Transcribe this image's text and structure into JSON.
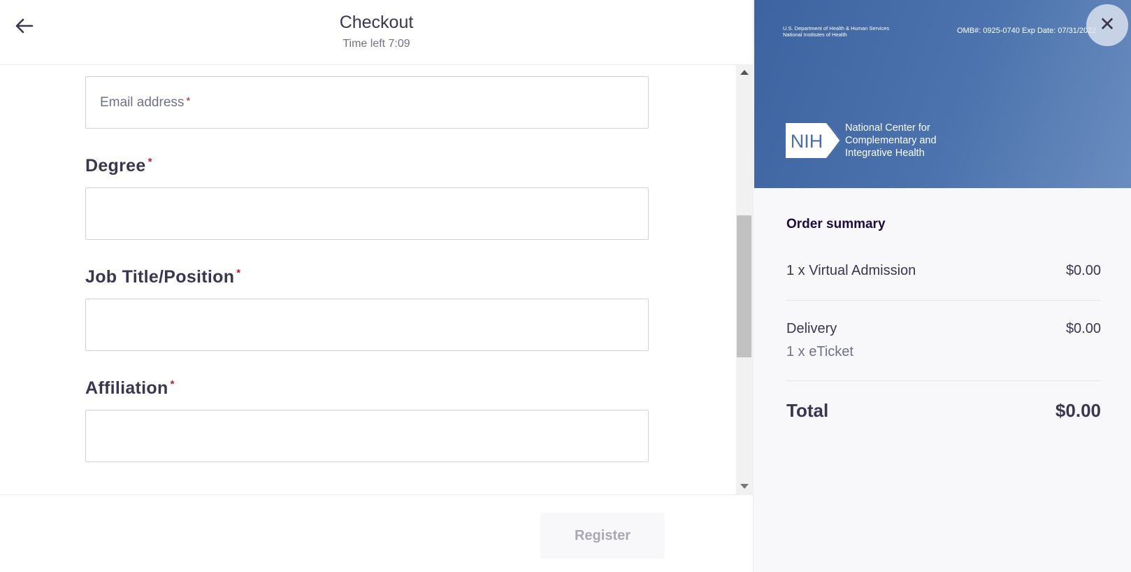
{
  "header": {
    "title": "Checkout",
    "timer": "Time left 7:09"
  },
  "form": {
    "email_placeholder": "Email address",
    "required_mark": "*",
    "fields": [
      {
        "label": "Degree"
      },
      {
        "label": "Job Title/Position"
      },
      {
        "label": "Affiliation"
      }
    ]
  },
  "footer": {
    "register_label": "Register"
  },
  "banner": {
    "dept_line1": "U.S. Department of Health & Human Services",
    "dept_line2": "National Institutes of Health",
    "omb": "OMB#: 0925-0740 Exp Date: 07/31/2022",
    "logo_text": "NIH",
    "center_line1": "National Center for",
    "center_line2": "Complementary and",
    "center_line3": "Integrative Health"
  },
  "summary": {
    "title": "Order summary",
    "items": [
      {
        "name": "1 x Virtual Admission",
        "price": "$0.00"
      }
    ],
    "delivery": {
      "label": "Delivery",
      "price": "$0.00",
      "detail": "1 x eTicket"
    },
    "total": {
      "label": "Total",
      "value": "$0.00"
    }
  },
  "colors": {
    "banner": "#4a70aa",
    "required": "#c5162e",
    "text": "#39364f"
  }
}
